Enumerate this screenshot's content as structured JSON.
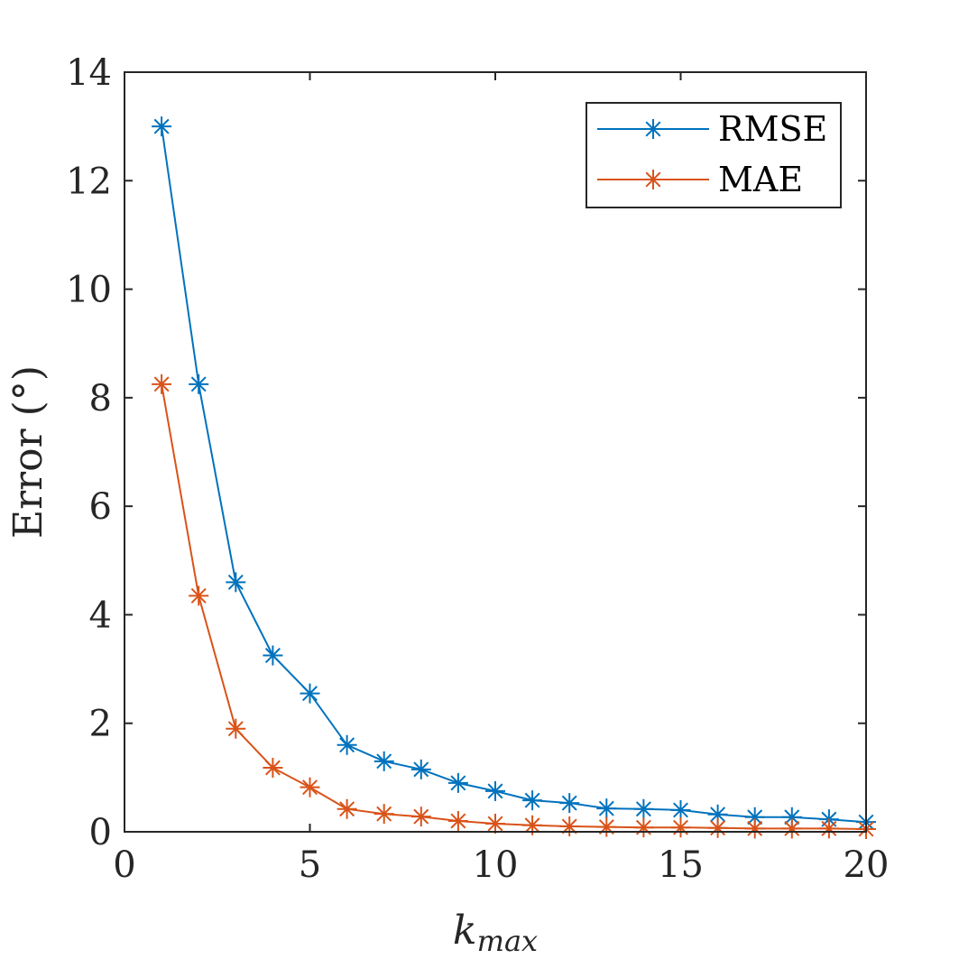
{
  "chart_data": {
    "type": "line",
    "title": "",
    "xlabel": "k_max",
    "xlabel_main": "k",
    "xlabel_sub": "max",
    "ylabel": "Error (°)",
    "xlim": [
      0,
      20
    ],
    "ylim": [
      0,
      14
    ],
    "xticks": [
      0,
      5,
      10,
      15,
      20
    ],
    "yticks": [
      0,
      2,
      4,
      6,
      8,
      10,
      12,
      14
    ],
    "grid": false,
    "legend_position": "top-right",
    "x": [
      1,
      2,
      3,
      4,
      5,
      6,
      7,
      8,
      9,
      10,
      11,
      12,
      13,
      14,
      15,
      16,
      17,
      18,
      19,
      20
    ],
    "series": [
      {
        "name": "RMSE",
        "color": "#0072BD",
        "marker": "asterisk",
        "values": [
          13.0,
          8.25,
          4.6,
          3.25,
          2.55,
          1.6,
          1.3,
          1.15,
          0.9,
          0.75,
          0.58,
          0.53,
          0.43,
          0.42,
          0.4,
          0.32,
          0.27,
          0.27,
          0.23,
          0.18
        ]
      },
      {
        "name": "MAE",
        "color": "#D95319",
        "marker": "asterisk",
        "values": [
          8.25,
          4.35,
          1.9,
          1.18,
          0.82,
          0.42,
          0.33,
          0.28,
          0.2,
          0.15,
          0.12,
          0.1,
          0.09,
          0.08,
          0.08,
          0.07,
          0.06,
          0.06,
          0.06,
          0.05
        ]
      }
    ]
  }
}
